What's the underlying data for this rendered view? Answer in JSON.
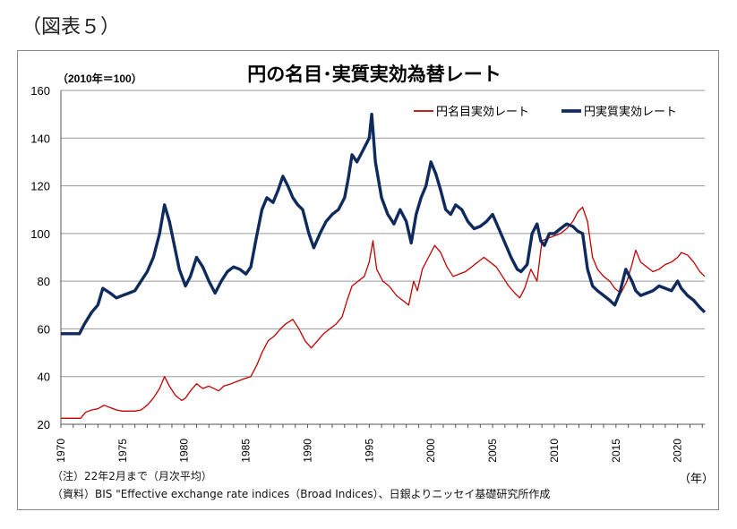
{
  "figure_label": "（図表５）",
  "notes": {
    "note1": "（注）22年2月まで（月次平均）",
    "note2": "（資料）BIS \"Effective exchange rate indices（Broad Indices）、日銀よりニッセイ基礎研究所作成"
  },
  "colors": {
    "nominal": "#c00000",
    "real": "#0f2a5c",
    "grid": "#999999"
  },
  "chart_data": {
    "type": "line",
    "title": "円の名目･実質実効為替レート",
    "subtitle": "（2010年＝100）",
    "xlabel": "（年）",
    "ylabel": "",
    "xlim": [
      1970,
      2022.2
    ],
    "ylim": [
      20,
      160
    ],
    "xticks": [
      1970,
      1975,
      1980,
      1985,
      1990,
      1995,
      2000,
      2005,
      2010,
      2015,
      2020
    ],
    "yticks": [
      20,
      40,
      60,
      80,
      100,
      120,
      140,
      160
    ],
    "grid": true,
    "legend_position": "top-right",
    "series": [
      {
        "name": "円名目実効レート",
        "color": "#c00000",
        "x": [
          1970,
          1971.6,
          1972,
          1972.5,
          1973,
          1973.5,
          1974,
          1974.5,
          1975,
          1976,
          1976.5,
          1977,
          1977.5,
          1978,
          1978.4,
          1978.8,
          1979.3,
          1979.8,
          1980.1,
          1980.5,
          1981,
          1981.5,
          1982,
          1982.8,
          1983.2,
          1983.8,
          1984.3,
          1984.8,
          1985.4,
          1985.9,
          1986.3,
          1986.8,
          1987.3,
          1987.8,
          1988.2,
          1988.8,
          1989.3,
          1989.8,
          1990.3,
          1990.8,
          1991.3,
          1991.8,
          1992.3,
          1992.8,
          1993.2,
          1993.6,
          1994.1,
          1994.6,
          1995.0,
          1995.3,
          1995.6,
          1996.1,
          1996.6,
          1997.2,
          1997.7,
          1998.2,
          1998.6,
          1998.9,
          1999.3,
          1999.8,
          2000.3,
          2000.8,
          2001.3,
          2001.8,
          2002.3,
          2002.8,
          2003.3,
          2003.8,
          2004.3,
          2004.8,
          2005.3,
          2005.8,
          2006.3,
          2006.8,
          2007.2,
          2007.6,
          2008.1,
          2008.6,
          2009.0,
          2009.5,
          2010.0,
          2010.5,
          2011.0,
          2011.5,
          2011.9,
          2012.3,
          2012.7,
          2013.1,
          2013.5,
          2014.0,
          2014.5,
          2014.9,
          2015.4,
          2015.9,
          2016.3,
          2016.6,
          2017.0,
          2017.5,
          2018.0,
          2018.5,
          2019.0,
          2019.5,
          2020.0,
          2020.3,
          2020.8,
          2021.3,
          2021.8,
          2022.2
        ],
        "values": [
          22.5,
          22.5,
          25,
          26,
          26.5,
          28,
          27,
          26,
          25.5,
          25.5,
          26,
          28,
          31,
          35,
          40,
          36,
          32,
          30,
          31,
          34,
          37,
          35,
          36,
          34,
          36,
          37,
          38,
          39,
          40,
          45,
          50,
          55,
          57,
          60,
          62,
          64,
          60,
          55,
          52,
          55,
          58,
          60,
          62,
          65,
          72,
          78,
          80,
          82,
          88,
          97,
          85,
          80,
          78,
          74,
          72,
          70,
          80,
          76,
          85,
          90,
          95,
          92,
          86,
          82,
          83,
          84,
          86,
          88,
          90,
          88,
          86,
          82,
          78,
          75,
          73,
          77,
          85,
          80,
          97,
          98,
          99,
          100,
          102,
          105,
          109,
          111,
          105,
          90,
          85,
          82,
          80,
          77,
          75,
          80,
          87,
          93,
          88,
          86,
          84,
          85,
          87,
          88,
          90,
          92,
          91,
          88,
          84,
          82
        ]
      },
      {
        "name": "円実質実効レート",
        "color": "#0f2a5c",
        "x": [
          1970,
          1971.5,
          1971.9,
          1972.5,
          1973,
          1973.4,
          1974,
          1974.5,
          1975,
          1975.5,
          1976,
          1976.5,
          1977,
          1977.5,
          1978,
          1978.4,
          1978.8,
          1979.2,
          1979.6,
          1980.1,
          1980.5,
          1981.0,
          1981.5,
          1982.0,
          1982.5,
          1983.0,
          1983.5,
          1984.0,
          1984.5,
          1985.0,
          1985.4,
          1985.8,
          1986.3,
          1986.7,
          1987.2,
          1987.6,
          1988.0,
          1988.4,
          1988.8,
          1989.2,
          1989.6,
          1990.1,
          1990.5,
          1991.0,
          1991.5,
          1992.0,
          1992.5,
          1993.0,
          1993.3,
          1993.6,
          1994.0,
          1994.5,
          1995.0,
          1995.2,
          1995.5,
          1996.0,
          1996.5,
          1997.0,
          1997.5,
          1998.0,
          1998.4,
          1998.8,
          1999.2,
          1999.6,
          2000.0,
          2000.4,
          2000.8,
          2001.2,
          2001.6,
          2002.0,
          2002.5,
          2003.0,
          2003.5,
          2004.0,
          2004.5,
          2005.0,
          2005.5,
          2006.0,
          2006.5,
          2007.0,
          2007.3,
          2007.8,
          2008.2,
          2008.6,
          2008.9,
          2009.2,
          2009.6,
          2010.0,
          2010.5,
          2011.0,
          2011.5,
          2011.9,
          2012.3,
          2012.7,
          2013.1,
          2013.5,
          2014.0,
          2014.5,
          2014.9,
          2015.3,
          2015.8,
          2016.3,
          2016.6,
          2017.0,
          2017.5,
          2018.0,
          2018.5,
          2019.0,
          2019.5,
          2020.0,
          2020.3,
          2020.8,
          2021.3,
          2021.8,
          2022.2
        ],
        "values": [
          58,
          58,
          62,
          67,
          70,
          77,
          75,
          73,
          74,
          75,
          76,
          80,
          84,
          90,
          100,
          112,
          105,
          95,
          85,
          78,
          82,
          90,
          86,
          80,
          75,
          80,
          84,
          86,
          85,
          83,
          86,
          97,
          110,
          115,
          113,
          118,
          124,
          120,
          115,
          112,
          110,
          100,
          94,
          100,
          105,
          108,
          110,
          115,
          123,
          133,
          130,
          135,
          140,
          150,
          130,
          115,
          108,
          104,
          110,
          105,
          96,
          108,
          115,
          120,
          130,
          125,
          118,
          110,
          108,
          112,
          110,
          105,
          102,
          103,
          105,
          108,
          102,
          96,
          90,
          85,
          84,
          87,
          100,
          104,
          97,
          95,
          100,
          100,
          102,
          104,
          103,
          101,
          100,
          85,
          78,
          76,
          74,
          72,
          70,
          75,
          85,
          80,
          76,
          74,
          75,
          76,
          78,
          77,
          76,
          80,
          77,
          74,
          72,
          69,
          67
        ]
      }
    ]
  }
}
